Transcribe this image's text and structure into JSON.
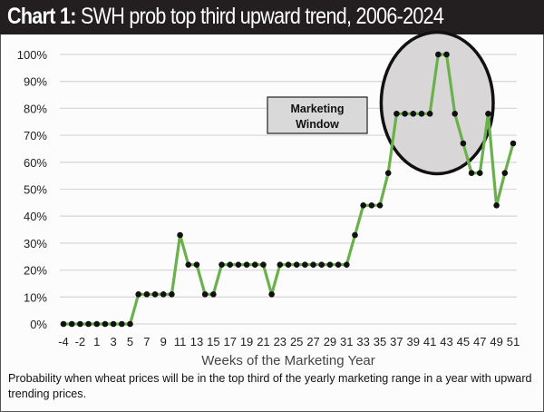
{
  "header": {
    "label": "Chart 1:",
    "title": "SWH prob top third upward trend, 2006-2024"
  },
  "caption": "Probability when wheat prices will be in the top third of the yearly marketing range in a year with upward trending prices.",
  "colors": {
    "line": "#6ab04c",
    "marker": "#111111",
    "highlight_fill": "#d9d6d7",
    "grid": "#d9d9d9",
    "title_bg": "#231f20"
  },
  "chart_data": {
    "type": "line",
    "title": "SWH prob top third upward trend, 2006-2024",
    "xlabel": "Weeks of the Marketing Year",
    "ylabel": "",
    "ylim": [
      0,
      100
    ],
    "yticks": [
      "0%",
      "10%",
      "20%",
      "30%",
      "40%",
      "50%",
      "60%",
      "70%",
      "80%",
      "90%",
      "100%"
    ],
    "xtick_labels": [
      "-4",
      "-2",
      "1",
      "3",
      "5",
      "7",
      "9",
      "11",
      "13",
      "15",
      "17",
      "19",
      "21",
      "23",
      "25",
      "27",
      "29",
      "31",
      "33",
      "35",
      "37",
      "39",
      "41",
      "43",
      "45",
      "47",
      "49",
      "51"
    ],
    "grid": true,
    "annotation": {
      "text_line1": "Marketing",
      "text_line2": "Window",
      "highlight_weeks": [
        37,
        51
      ]
    },
    "x": [
      -4,
      -3,
      -2,
      -1,
      1,
      2,
      3,
      4,
      5,
      6,
      7,
      8,
      9,
      10,
      11,
      12,
      13,
      14,
      15,
      16,
      17,
      18,
      19,
      20,
      21,
      22,
      23,
      24,
      25,
      26,
      27,
      28,
      29,
      30,
      31,
      32,
      33,
      34,
      35,
      36,
      37,
      38,
      39,
      40,
      41,
      42,
      43,
      44,
      45,
      46,
      47,
      48,
      49,
      50,
      51
    ],
    "series": [
      {
        "name": "Probability",
        "values": [
          0,
          0,
          0,
          0,
          0,
          0,
          0,
          0,
          0,
          11,
          11,
          11,
          11,
          11,
          33,
          22,
          22,
          11,
          11,
          22,
          22,
          22,
          22,
          22,
          22,
          11,
          22,
          22,
          22,
          22,
          22,
          22,
          22,
          22,
          22,
          33,
          44,
          44,
          44,
          56,
          78,
          78,
          78,
          78,
          78,
          100,
          100,
          78,
          67,
          56,
          56,
          78,
          44,
          56,
          67
        ]
      }
    ]
  }
}
